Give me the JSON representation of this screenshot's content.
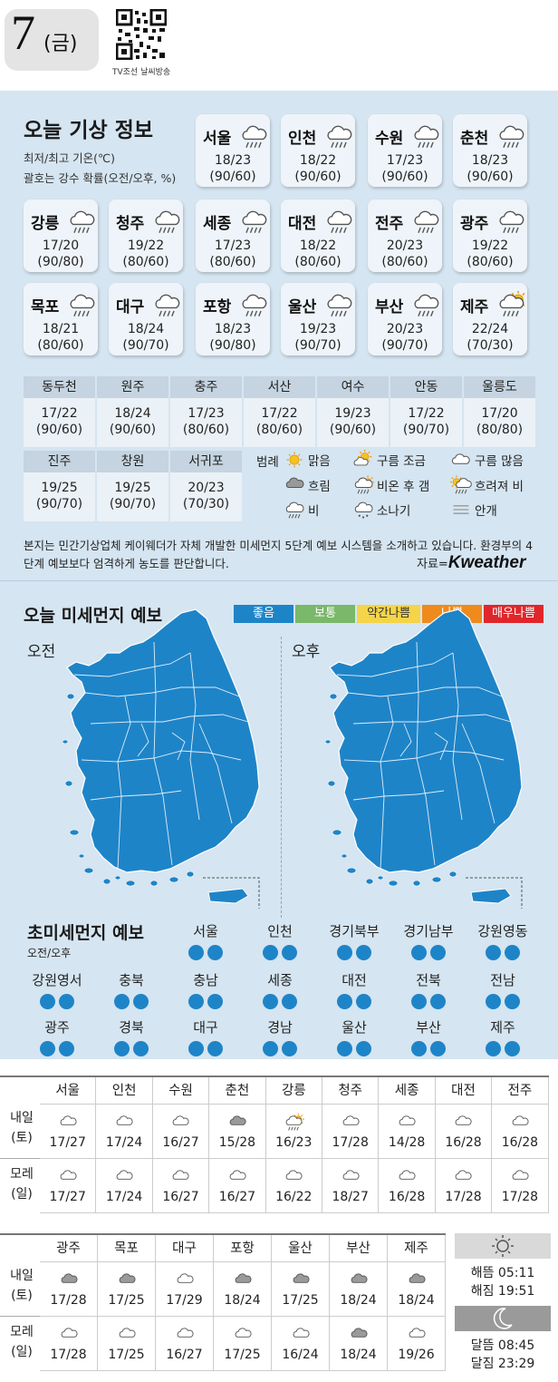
{
  "header": {
    "day": "7",
    "weekday": "(금)",
    "qr_caption": "TV조선 날씨방송"
  },
  "weather_info": {
    "title": "오늘 기상 정보",
    "note1": "최저/최고 기온(℃)",
    "note2": "괄호는 강수 확률(오전/오후, %)",
    "cards": [
      {
        "name": "서울",
        "icon": "rain",
        "temp": "18/23",
        "prob": "(90/60)"
      },
      {
        "name": "인천",
        "icon": "rain",
        "temp": "18/22",
        "prob": "(90/60)"
      },
      {
        "name": "수원",
        "icon": "rain",
        "temp": "17/23",
        "prob": "(90/60)"
      },
      {
        "name": "춘천",
        "icon": "rain",
        "temp": "18/23",
        "prob": "(90/60)"
      },
      {
        "name": "강릉",
        "icon": "rain",
        "temp": "17/20",
        "prob": "(90/80)"
      },
      {
        "name": "청주",
        "icon": "rain",
        "temp": "19/22",
        "prob": "(80/60)"
      },
      {
        "name": "세종",
        "icon": "rain",
        "temp": "17/23",
        "prob": "(80/60)"
      },
      {
        "name": "대전",
        "icon": "rain",
        "temp": "18/22",
        "prob": "(80/60)"
      },
      {
        "name": "전주",
        "icon": "rain",
        "temp": "20/23",
        "prob": "(80/60)"
      },
      {
        "name": "광주",
        "icon": "rain",
        "temp": "19/22",
        "prob": "(80/60)"
      },
      {
        "name": "목포",
        "icon": "rain",
        "temp": "18/21",
        "prob": "(80/60)"
      },
      {
        "name": "대구",
        "icon": "rain",
        "temp": "18/24",
        "prob": "(90/70)"
      },
      {
        "name": "포항",
        "icon": "rain",
        "temp": "18/23",
        "prob": "(90/80)"
      },
      {
        "name": "울산",
        "icon": "rain",
        "temp": "19/23",
        "prob": "(90/70)"
      },
      {
        "name": "부산",
        "icon": "rain",
        "temp": "20/23",
        "prob": "(90/70)"
      },
      {
        "name": "제주",
        "icon": "rain-then-clear",
        "temp": "22/24",
        "prob": "(70/30)"
      }
    ],
    "small_table_row1": [
      {
        "name": "동두천",
        "temp": "17/22",
        "prob": "(90/60)"
      },
      {
        "name": "원주",
        "temp": "18/24",
        "prob": "(90/60)"
      },
      {
        "name": "충주",
        "temp": "17/23",
        "prob": "(80/60)"
      },
      {
        "name": "서산",
        "temp": "17/22",
        "prob": "(80/60)"
      },
      {
        "name": "여수",
        "temp": "19/23",
        "prob": "(90/60)"
      },
      {
        "name": "안동",
        "temp": "17/22",
        "prob": "(90/70)"
      },
      {
        "name": "울릉도",
        "temp": "17/20",
        "prob": "(80/80)"
      }
    ],
    "small_table_row2": [
      {
        "name": "진주",
        "temp": "19/25",
        "prob": "(90/70)"
      },
      {
        "name": "창원",
        "temp": "19/25",
        "prob": "(90/70)"
      },
      {
        "name": "서귀포",
        "temp": "20/23",
        "prob": "(70/30)"
      }
    ],
    "legend": {
      "title": "범례",
      "items": [
        "맑음",
        "구름 조금",
        "구름 많음",
        "흐림",
        "비온 후 갬",
        "흐려져 비",
        "비",
        "소나기",
        "안개"
      ]
    },
    "notice": "본지는 민간기상업체 케이웨더가 자체 개발한 미세먼지 5단계 예보 시스템을 소개하고 있습니다. 환경부의 4단계 예보보다 엄격하게 농도를 판단합니다.",
    "source_label": "자료=",
    "source_brand": "Kweather"
  },
  "fine_dust": {
    "title": "오늘 미세먼지 예보",
    "scale": [
      {
        "label": "좋음",
        "color": "#1e84c8"
      },
      {
        "label": "보통",
        "color": "#7ab86a"
      },
      {
        "label": "약간나쁨",
        "color": "#f5d547"
      },
      {
        "label": "나쁨",
        "color": "#ef8a1d"
      },
      {
        "label": "매우나쁨",
        "color": "#e0262b"
      }
    ],
    "am_label": "오전",
    "pm_label": "오후",
    "map_color": "#1e84c8"
  },
  "ultrafine": {
    "title": "초미세먼지 예보",
    "subtitle": "오전/오후",
    "regions": [
      "서울",
      "인천",
      "경기북부",
      "경기남부",
      "강원영동",
      "강원영서",
      "충북",
      "충남",
      "세종",
      "대전",
      "전북",
      "전남",
      "광주",
      "경북",
      "대구",
      "경남",
      "울산",
      "부산",
      "제주"
    ],
    "level": "좋음"
  },
  "forecast1": {
    "cities": [
      "서울",
      "인천",
      "수원",
      "춘천",
      "강릉",
      "청주",
      "세종",
      "대전",
      "전주"
    ],
    "tomorrow_label": [
      "내일",
      "(토)"
    ],
    "dayafter_label": [
      "모레",
      "(일)"
    ],
    "tomorrow": [
      {
        "icon": "cloudy",
        "temp": "17/27"
      },
      {
        "icon": "cloudy",
        "temp": "17/24"
      },
      {
        "icon": "cloudy",
        "temp": "16/27"
      },
      {
        "icon": "overcast",
        "temp": "15/28"
      },
      {
        "icon": "rain-then-clear",
        "temp": "16/23"
      },
      {
        "icon": "cloudy",
        "temp": "17/28"
      },
      {
        "icon": "cloudy",
        "temp": "14/28"
      },
      {
        "icon": "cloudy",
        "temp": "16/28"
      },
      {
        "icon": "cloudy",
        "temp": "16/28"
      }
    ],
    "dayafter": [
      {
        "icon": "cloudy",
        "temp": "17/27"
      },
      {
        "icon": "cloudy",
        "temp": "17/24"
      },
      {
        "icon": "cloudy",
        "temp": "16/27"
      },
      {
        "icon": "cloudy",
        "temp": "16/27"
      },
      {
        "icon": "cloudy",
        "temp": "16/22"
      },
      {
        "icon": "cloudy",
        "temp": "18/27"
      },
      {
        "icon": "cloudy",
        "temp": "16/28"
      },
      {
        "icon": "cloudy",
        "temp": "17/28"
      },
      {
        "icon": "cloudy",
        "temp": "17/28"
      }
    ]
  },
  "forecast2": {
    "cities": [
      "광주",
      "목포",
      "대구",
      "포항",
      "울산",
      "부산",
      "제주"
    ],
    "tomorrow_label": [
      "내일",
      "(토)"
    ],
    "dayafter_label": [
      "모레",
      "(일)"
    ],
    "tomorrow": [
      {
        "icon": "overcast",
        "temp": "17/28"
      },
      {
        "icon": "overcast",
        "temp": "17/25"
      },
      {
        "icon": "cloudy",
        "temp": "17/29"
      },
      {
        "icon": "overcast",
        "temp": "18/24"
      },
      {
        "icon": "overcast",
        "temp": "17/25"
      },
      {
        "icon": "overcast",
        "temp": "18/24"
      },
      {
        "icon": "overcast",
        "temp": "18/24"
      }
    ],
    "dayafter": [
      {
        "icon": "cloudy",
        "temp": "17/28"
      },
      {
        "icon": "cloudy",
        "temp": "17/25"
      },
      {
        "icon": "cloudy",
        "temp": "16/27"
      },
      {
        "icon": "cloudy",
        "temp": "17/25"
      },
      {
        "icon": "cloudy",
        "temp": "16/24"
      },
      {
        "icon": "overcast",
        "temp": "18/24"
      },
      {
        "icon": "cloudy",
        "temp": "19/26"
      }
    ]
  },
  "sun_moon": {
    "sunrise": "해뜸 05:11",
    "sunset": "해짐 19:51",
    "moonrise": "달뜸 08:45",
    "moonset": "달짐 23:29"
  }
}
